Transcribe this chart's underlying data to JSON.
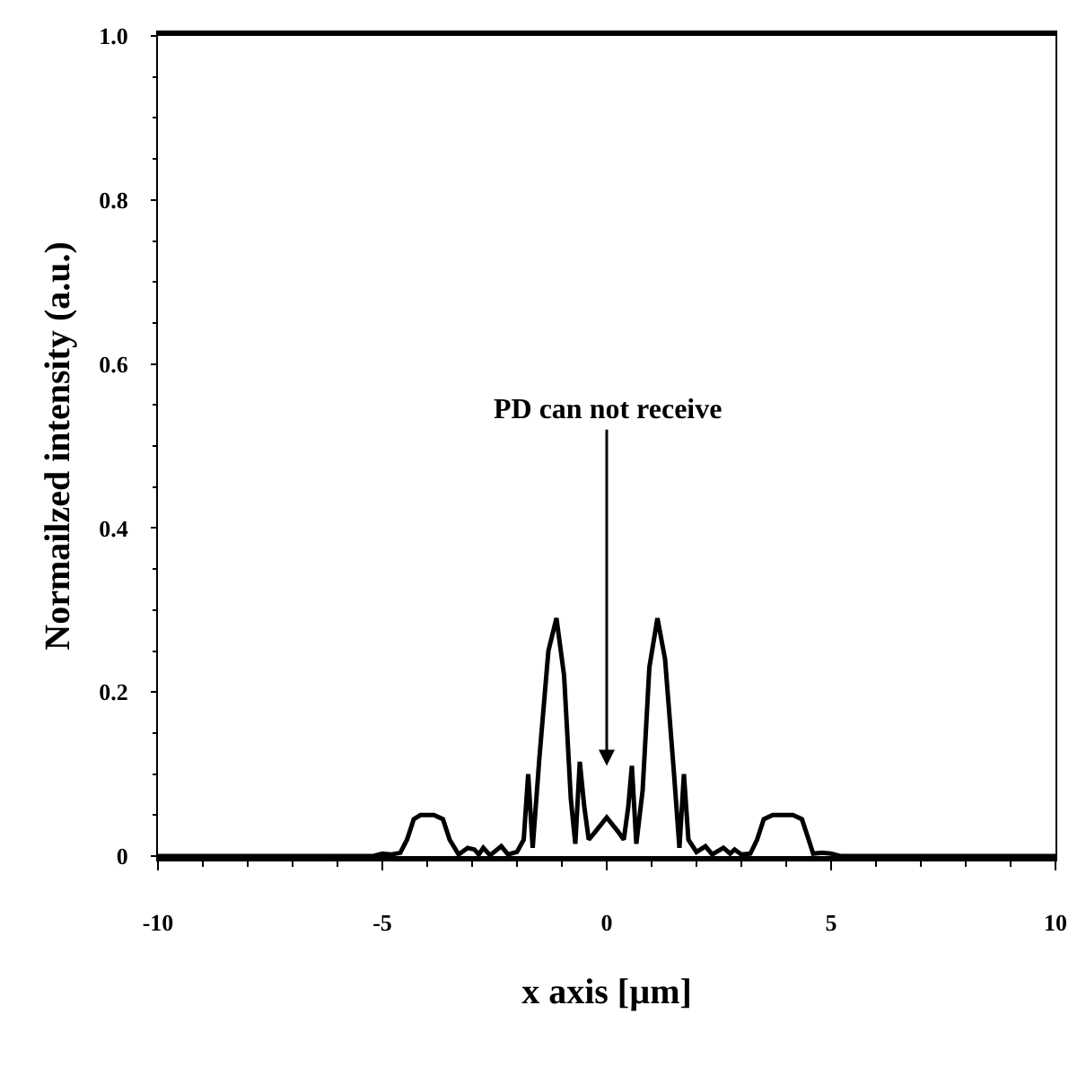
{
  "chart_data": {
    "type": "line",
    "xlabel": "x axis [µm]",
    "ylabel": "Normailzed intensity (a.u.)",
    "xlim": [
      -10,
      10
    ],
    "xticks": [
      -10,
      -5,
      0,
      5,
      10
    ],
    "ylim": [
      0,
      1.0
    ],
    "yticks": [
      0,
      0.2,
      0.4,
      0.6,
      0.8,
      {
        "value": 1.0,
        "label": "1.0"
      }
    ],
    "marker": "none",
    "line_style": "solid",
    "annotations": [
      "PD can not receive"
    ],
    "series": [
      {
        "color": "#000000",
        "x": [
          -10,
          -5.2,
          -5.0,
          -4.8,
          -4.6,
          -4.45,
          -4.3,
          -4.15,
          -3.85,
          -3.65,
          -3.5,
          -3.3,
          -3.1,
          -2.95,
          -2.85,
          -2.75,
          -2.6,
          -2.35,
          -2.2,
          -2.0,
          -1.85,
          -1.75,
          -1.65,
          -1.5,
          -1.3,
          -1.12,
          -0.95,
          -0.8,
          -0.7,
          -0.6,
          -0.5,
          -0.4,
          -0.25,
          0,
          0.25,
          0.38,
          0.48,
          0.56,
          0.66,
          0.8,
          0.95,
          1.13,
          1.3,
          1.5,
          1.62,
          1.72,
          1.82,
          2.0,
          2.2,
          2.35,
          2.6,
          2.75,
          2.85,
          3.0,
          3.2,
          3.35,
          3.5,
          3.7,
          4.15,
          4.35,
          4.5,
          4.6,
          4.8,
          5.0,
          5.2,
          10
        ],
        "values": [
          0,
          0,
          0.003,
          0.002,
          0.004,
          0.02,
          0.045,
          0.05,
          0.05,
          0.045,
          0.02,
          0.002,
          0.01,
          0.008,
          0.002,
          0.01,
          0.001,
          0.012,
          0.002,
          0.005,
          0.02,
          0.1,
          0.01,
          0.12,
          0.25,
          0.29,
          0.22,
          0.07,
          0.015,
          0.115,
          0.06,
          0.02,
          0.03,
          0.047,
          0.03,
          0.02,
          0.06,
          0.11,
          0.015,
          0.08,
          0.23,
          0.29,
          0.24,
          0.1,
          0.01,
          0.1,
          0.02,
          0.005,
          0.012,
          0.002,
          0.01,
          0.003,
          0.008,
          0.002,
          0.003,
          0.02,
          0.045,
          0.05,
          0.05,
          0.045,
          0.02,
          0.003,
          0.004,
          0.003,
          0,
          0
        ]
      }
    ]
  }
}
